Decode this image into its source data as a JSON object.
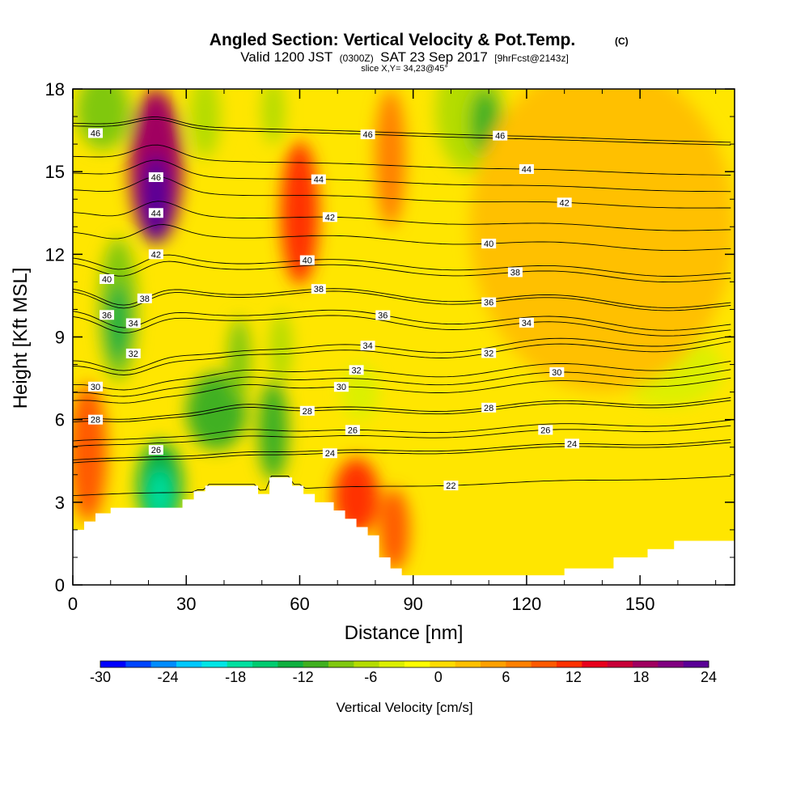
{
  "title": {
    "main": "Angled Section: Vertical Velocity & Pot.Temp.",
    "unit": "(C)",
    "valid_prefix": "Valid 1200 JST",
    "valid_utc": "(0300Z)",
    "valid_date": "SAT 23 Sep 2017",
    "forecast": "[9hrFcst@2143z]",
    "slice": "slice X,Y= 34,23@45°"
  },
  "colors": {
    "frame": "#000000",
    "terrain": "#ffffff",
    "contour": "#000000"
  },
  "chart_data": {
    "type": "heatmap",
    "xlabel": "Distance [nm]",
    "ylabel": "Height [Kft MSL]",
    "xlim": [
      0,
      175
    ],
    "ylim": [
      0,
      18
    ],
    "xticks": [
      0,
      30,
      60,
      90,
      120,
      150
    ],
    "yticks": [
      0,
      3,
      6,
      9,
      12,
      15,
      18
    ],
    "grid": false,
    "colorbar": {
      "label": "Vertical Velocity [cm/s]",
      "range": [
        -30,
        24
      ],
      "tick_values": [
        -30,
        -24,
        -18,
        -12,
        -6,
        0,
        6,
        12,
        18,
        24
      ],
      "colors": [
        "#0000ff",
        "#0046ff",
        "#008cff",
        "#00c8ff",
        "#00e6e6",
        "#00e0a0",
        "#00cc70",
        "#10b040",
        "#40b020",
        "#80c810",
        "#b4dc00",
        "#dcf000",
        "#ffff00",
        "#ffdc00",
        "#ffc000",
        "#ffa000",
        "#ff8000",
        "#ff5a00",
        "#ff3000",
        "#e8001c",
        "#c80038",
        "#a00060",
        "#800080",
        "#5a0096"
      ]
    },
    "velocity_features": [
      {
        "x": 22,
        "z": 15.2,
        "rx": 7,
        "rz": 2.8,
        "value": 18
      },
      {
        "x": 22,
        "z": 14.0,
        "rx": 4,
        "rz": 1.6,
        "value": 22
      },
      {
        "x": 60,
        "z": 13.5,
        "rx": 5,
        "rz": 2.6,
        "value": 12
      },
      {
        "x": 75,
        "z": 3.2,
        "rx": 6,
        "rz": 1.4,
        "value": 12
      },
      {
        "x": 85,
        "z": 2.0,
        "rx": 4,
        "rz": 1.5,
        "value": 10
      },
      {
        "x": 4,
        "z": 4.8,
        "rx": 5,
        "rz": 2.5,
        "value": 9
      },
      {
        "x": 105,
        "z": 17.2,
        "rx": 9,
        "rz": 2.2,
        "value": -6
      },
      {
        "x": 109,
        "z": 16.8,
        "rx": 4,
        "rz": 1.2,
        "value": -12
      },
      {
        "x": 8,
        "z": 17.2,
        "rx": 7,
        "rz": 1.4,
        "value": -9
      },
      {
        "x": 12,
        "z": 10.0,
        "rx": 5,
        "rz": 2.6,
        "value": -9
      },
      {
        "x": 12,
        "z": 9.5,
        "rx": 3,
        "rz": 1.4,
        "value": -14
      },
      {
        "x": 23,
        "z": 3.6,
        "rx": 6,
        "rz": 1.6,
        "value": -14
      },
      {
        "x": 23,
        "z": 3.3,
        "rx": 3,
        "rz": 0.9,
        "value": -18
      },
      {
        "x": 38,
        "z": 6.3,
        "rx": 8,
        "rz": 1.4,
        "value": -11
      },
      {
        "x": 53,
        "z": 5.6,
        "rx": 4,
        "rz": 1.8,
        "value": -12
      },
      {
        "x": 44,
        "z": 8.2,
        "rx": 3,
        "rz": 1.5,
        "value": -8
      },
      {
        "x": 55,
        "z": 8.6,
        "rx": 3,
        "rz": 1.3,
        "value": -6
      },
      {
        "x": 76,
        "z": 7.0,
        "rx": 5,
        "rz": 1.0,
        "value": -4
      },
      {
        "x": 158,
        "z": 7.8,
        "rx": 14,
        "rz": 1.3,
        "value": -4
      },
      {
        "x": 35,
        "z": 17.0,
        "rx": 4,
        "rz": 1.5,
        "value": -6
      },
      {
        "x": 53,
        "z": 17.2,
        "rx": 3,
        "rz": 1.2,
        "value": -6
      },
      {
        "x": 84,
        "z": 15.5,
        "rx": 4,
        "rz": 2.5,
        "value": 8
      },
      {
        "x": 140,
        "z": 13.0,
        "rx": 35,
        "rz": 6.0,
        "value": 2
      }
    ],
    "terrain": [
      [
        0,
        2.0
      ],
      [
        3,
        2.0
      ],
      [
        3,
        2.3
      ],
      [
        6,
        2.3
      ],
      [
        6,
        2.6
      ],
      [
        10,
        2.6
      ],
      [
        10,
        2.8
      ],
      [
        29,
        2.8
      ],
      [
        29,
        3.1
      ],
      [
        32,
        3.1
      ],
      [
        32,
        3.4
      ],
      [
        35,
        3.4
      ],
      [
        35,
        3.6
      ],
      [
        49,
        3.6
      ],
      [
        49,
        3.3
      ],
      [
        52,
        3.3
      ],
      [
        52,
        3.9
      ],
      [
        58,
        3.9
      ],
      [
        58,
        3.6
      ],
      [
        61,
        3.6
      ],
      [
        61,
        3.3
      ],
      [
        64,
        3.3
      ],
      [
        64,
        3.0
      ],
      [
        69,
        3.0
      ],
      [
        69,
        2.7
      ],
      [
        72,
        2.7
      ],
      [
        72,
        2.4
      ],
      [
        75,
        2.4
      ],
      [
        75,
        2.1
      ],
      [
        78,
        2.1
      ],
      [
        78,
        1.8
      ],
      [
        81,
        1.8
      ],
      [
        81,
        1.0
      ],
      [
        84,
        1.0
      ],
      [
        84,
        0.6
      ],
      [
        87,
        0.6
      ],
      [
        87,
        0.35
      ],
      [
        130,
        0.35
      ],
      [
        130,
        0.6
      ],
      [
        143,
        0.6
      ],
      [
        143,
        1.0
      ],
      [
        152,
        1.0
      ],
      [
        152,
        1.3
      ],
      [
        159,
        1.3
      ],
      [
        159,
        1.6
      ],
      [
        175,
        1.6
      ]
    ],
    "isentropes": [
      {
        "value": 22,
        "z0": 3.6,
        "label_x": 100
      },
      {
        "value": 24,
        "z0": 4.8,
        "label_x": 68
      },
      {
        "value": 24,
        "z0": 4.9,
        "label_x": 132
      },
      {
        "value": 26,
        "z0": 5.6,
        "label_x": 74
      },
      {
        "value": 26,
        "z0": 5.4,
        "label_x": 125
      },
      {
        "value": 28,
        "z0": 6.3,
        "label_x": 62
      },
      {
        "value": 28,
        "z0": 6.4,
        "label_x": 110
      },
      {
        "value": 30,
        "z0": 7.1,
        "label_x": 71
      },
      {
        "value": 30,
        "z0": 7.4,
        "label_x": 128
      },
      {
        "value": 32,
        "z0": 7.7,
        "label_x": 75
      },
      {
        "value": 32,
        "z0": 8.4,
        "label_x": 110
      },
      {
        "value": 34,
        "z0": 8.6,
        "label_x": 78
      },
      {
        "value": 34,
        "z0": 9.5,
        "label_x": 120
      },
      {
        "value": 36,
        "z0": 9.7,
        "label_x": 82
      },
      {
        "value": 36,
        "z0": 10.4,
        "label_x": 110
      },
      {
        "value": 38,
        "z0": 10.5,
        "label_x": 65
      },
      {
        "value": 38,
        "z0": 11.4,
        "label_x": 117
      },
      {
        "value": 40,
        "z0": 11.6,
        "label_x": 62
      },
      {
        "value": 40,
        "z0": 12.5,
        "label_x": 110
      },
      {
        "value": 42,
        "z0": 13.2,
        "label_x": 68
      },
      {
        "value": 42,
        "z0": 14.0,
        "label_x": 130
      },
      {
        "value": 44,
        "z0": 14.6,
        "label_x": 65
      },
      {
        "value": 44,
        "z0": 15.2,
        "label_x": 120
      },
      {
        "value": 46,
        "z0": 16.3,
        "label_x": 78
      },
      {
        "value": 46,
        "z0": 16.4,
        "label_x": 113
      }
    ],
    "left_labels": [
      {
        "value": 46,
        "x": 6,
        "z": 16.4
      },
      {
        "value": 46,
        "x": 22,
        "z": 14.8
      },
      {
        "value": 44,
        "x": 22,
        "z": 13.5
      },
      {
        "value": 42,
        "x": 22,
        "z": 12.0
      },
      {
        "value": 40,
        "x": 9,
        "z": 11.1
      },
      {
        "value": 38,
        "x": 19,
        "z": 10.4
      },
      {
        "value": 36,
        "x": 9,
        "z": 9.8
      },
      {
        "value": 34,
        "x": 16,
        "z": 9.5
      },
      {
        "value": 32,
        "x": 16,
        "z": 8.4
      },
      {
        "value": 30,
        "x": 6,
        "z": 7.2
      },
      {
        "value": 28,
        "x": 6,
        "z": 6.0
      },
      {
        "value": 26,
        "x": 22,
        "z": 4.9
      }
    ]
  }
}
